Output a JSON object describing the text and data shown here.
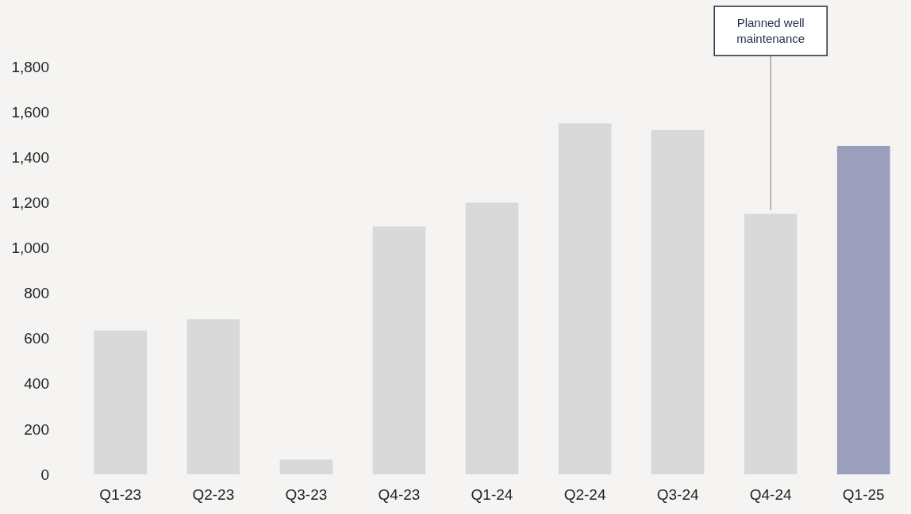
{
  "chart_data": {
    "type": "bar",
    "categories": [
      "Q1-23",
      "Q2-23",
      "Q3-23",
      "Q4-23",
      "Q1-24",
      "Q2-24",
      "Q3-24",
      "Q4-24",
      "Q1-25"
    ],
    "values": [
      635,
      685,
      65,
      1095,
      1200,
      1550,
      1520,
      1150,
      1450
    ],
    "colors": [
      "#d9d9d9",
      "#d9d9d9",
      "#d9d9d9",
      "#d9d9d9",
      "#d9d9d9",
      "#d9d9d9",
      "#d9d9d9",
      "#d9d9d9",
      "#9b9fbb"
    ],
    "ylim": [
      0,
      1800
    ],
    "yticks": [
      {
        "value": 0,
        "label": "0"
      },
      {
        "value": 200,
        "label": "200"
      },
      {
        "value": 400,
        "label": "400"
      },
      {
        "value": 600,
        "label": "600"
      },
      {
        "value": 800,
        "label": "800"
      },
      {
        "value": 1000,
        "label": "1,000"
      },
      {
        "value": 1200,
        "label": "1,200"
      },
      {
        "value": 1400,
        "label": "1,400"
      },
      {
        "value": 1600,
        "label": "1,600"
      },
      {
        "value": 1800,
        "label": "1,800"
      }
    ],
    "grid": false,
    "annotations": [
      {
        "text": "Planned well maintenance",
        "x": "Q4-24",
        "y": 1150
      }
    ]
  }
}
